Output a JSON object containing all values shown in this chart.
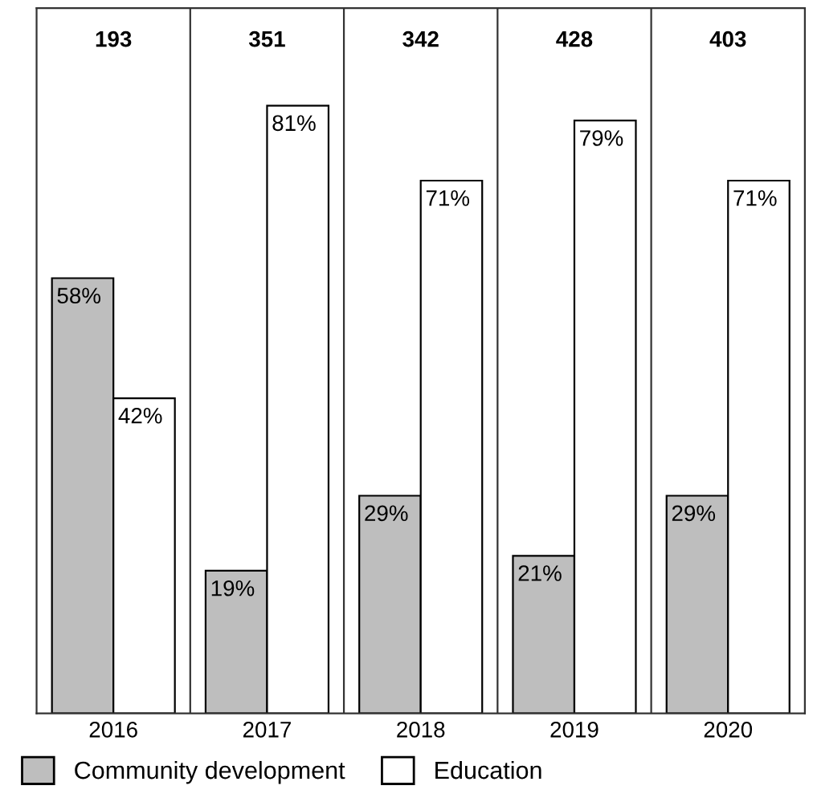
{
  "chart_data": {
    "type": "bar",
    "categories": [
      "2016",
      "2017",
      "2018",
      "2019",
      "2020"
    ],
    "series": [
      {
        "name": "Community development",
        "color": "#bebebe",
        "values": [
          58,
          19,
          29,
          21,
          29
        ],
        "value_labels": [
          "58%",
          "19%",
          "29%",
          "21%",
          "29%"
        ]
      },
      {
        "name": "Education",
        "color": "#ffffff",
        "values": [
          42,
          81,
          71,
          79,
          71
        ],
        "value_labels": [
          "42%",
          "81%",
          "71%",
          "79%",
          "71%"
        ]
      }
    ],
    "annotations": [
      "193",
      "351",
      "342",
      "428",
      "403"
    ],
    "ylim": [
      0,
      94
    ],
    "tick_labels": "x",
    "legend": "bottom left",
    "grid": false
  }
}
